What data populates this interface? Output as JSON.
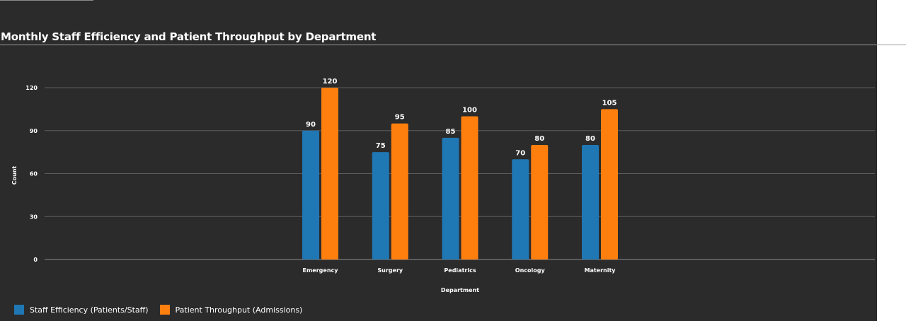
{
  "chart_data": {
    "type": "bar",
    "title": "Monthly Staff Efficiency and Patient Throughput by Department",
    "xlabel": "Department",
    "ylabel": "Count",
    "ylim": [
      0,
      120
    ],
    "yticks": [
      0,
      30,
      60,
      90,
      120
    ],
    "grid": true,
    "legend_position": "bottom-left",
    "categories": [
      "Emergency",
      "Surgery",
      "Pediatrics",
      "Oncology",
      "Maternity"
    ],
    "series": [
      {
        "name": "Staff Efficiency (Patients/Staff)",
        "color": "#1f77b4",
        "values": [
          90,
          75,
          85,
          70,
          80
        ]
      },
      {
        "name": "Patient Throughput (Admissions)",
        "color": "#ff7f0e",
        "values": [
          120,
          95,
          100,
          80,
          105
        ]
      }
    ]
  }
}
